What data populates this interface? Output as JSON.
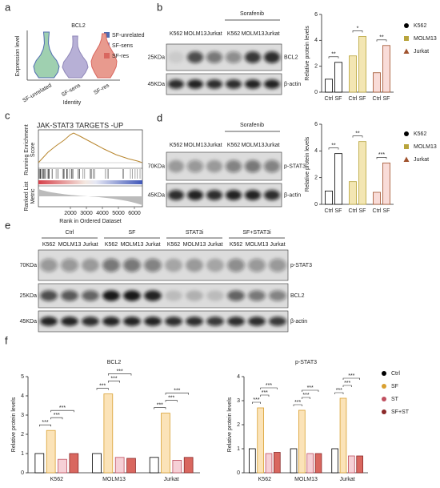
{
  "panel_labels": [
    "a",
    "b",
    "c",
    "d",
    "e",
    "f"
  ],
  "panel_a": {
    "title": "BCL2",
    "y_label": "Expression level",
    "x_label": "Identity",
    "categories": [
      "SF-unrelated",
      "SF-sens",
      "SF-res"
    ],
    "colors": [
      "#4f6bb0",
      "#8f86b8",
      "#d9675f"
    ]
  },
  "panel_b": {
    "treatment": "Sorafenib",
    "lanes": [
      "K562",
      "MOLM13",
      "Jurkat",
      "K562",
      "MOLM13",
      "Jurkat"
    ],
    "markers": [
      "25KDa",
      "45KDa"
    ],
    "proteins": [
      "BCL2",
      "β-actin"
    ]
  },
  "panel_c": {
    "title": "JAK-STAT3 TARGETS -UP",
    "score_label": [
      "Running Enrichment",
      "Score"
    ],
    "metric_label": [
      "Ranked List",
      "Metric"
    ],
    "x_label": "Rank in Ordered Dataset",
    "xlim": [
      0,
      6500
    ],
    "xticks": [
      2000,
      3000,
      4000,
      5000,
      6000
    ]
  },
  "panel_d": {
    "treatment": "Sorafenib",
    "lanes": [
      "K562",
      "MOLM13",
      "Jurkat",
      "K562",
      "MOLM13",
      "Jurkat"
    ],
    "markers": [
      "70KDa",
      "45KDa"
    ],
    "proteins": [
      "p-STAT3",
      "β-actin"
    ]
  },
  "panel_e": {
    "groups": [
      "Ctrl",
      "SF",
      "STAT3i",
      "SF+STAT3i"
    ],
    "lanes": [
      "K562",
      "MOLM13",
      "Jurkat"
    ],
    "markers": [
      "70KDa",
      "25KDa",
      "45KDa"
    ],
    "proteins": [
      "p-STAT3",
      "BCL2",
      "β-actin"
    ]
  },
  "chart_data": [
    {
      "type": "bar",
      "group_by": "series",
      "y_label": "Relative protein levels",
      "categories": [
        "Ctrl",
        "SF"
      ],
      "series": [
        {
          "name": "K562",
          "color": "#000000",
          "fill": "#ffffff",
          "marker": "circle",
          "values": [
            1.0,
            2.3
          ]
        },
        {
          "name": "MOLM13",
          "color": "#b8a43c",
          "fill": "#f3e6b3",
          "marker": "square",
          "values": [
            2.8,
            4.3
          ]
        },
        {
          "name": "Jurkat",
          "color": "#a0522d",
          "fill": "#f9dcd8",
          "marker": "triangle",
          "values": [
            1.5,
            3.6
          ]
        }
      ],
      "significance": [
        "**",
        "*",
        "**"
      ],
      "ylim": [
        0,
        6
      ],
      "yticks": [
        0,
        2,
        4,
        6
      ],
      "legend": true
    },
    {
      "type": "bar",
      "group_by": "series",
      "y_label": "Relative protein levels",
      "categories": [
        "Ctrl",
        "SF"
      ],
      "series": [
        {
          "name": "K562",
          "color": "#000000",
          "fill": "#ffffff",
          "marker": "circle",
          "values": [
            1.0,
            3.8
          ]
        },
        {
          "name": "MOLM13",
          "color": "#b8a43c",
          "fill": "#f3e6b3",
          "marker": "square",
          "values": [
            1.7,
            4.7
          ]
        },
        {
          "name": "Jurkat",
          "color": "#a0522d",
          "fill": "#f9dcd8",
          "marker": "triangle",
          "values": [
            0.9,
            3.1
          ]
        }
      ],
      "significance": [
        "**",
        "**",
        "***"
      ],
      "ylim": [
        0,
        6
      ],
      "yticks": [
        0,
        2,
        4,
        6
      ],
      "legend": true
    },
    {
      "type": "bar",
      "group_by": "categories",
      "title": "BCL2",
      "y_label": "Relative protein levels",
      "categories": [
        "K562",
        "MOLM13",
        "Jurkat"
      ],
      "series": [
        {
          "name": "Ctrl",
          "color": "#000000",
          "fill": "#ffffff",
          "marker": "circle",
          "values": [
            1.0,
            1.0,
            0.8
          ]
        },
        {
          "name": "SF",
          "color": "#d9a030",
          "fill": "#fbe3b8",
          "marker": "circle",
          "values": [
            2.2,
            4.1,
            3.1
          ]
        },
        {
          "name": "ST",
          "color": "#c05060",
          "fill": "#f6d0d6",
          "marker": "circle",
          "values": [
            0.7,
            0.8,
            0.65
          ]
        },
        {
          "name": "SF+ST",
          "color": "#8b2a2a",
          "fill": "#d9675f",
          "marker": "circle",
          "values": [
            1.0,
            0.75,
            0.8
          ]
        }
      ],
      "significance": [
        [
          "***",
          "***",
          "***"
        ],
        [
          "***",
          "***",
          "***"
        ],
        [
          "***",
          "***",
          "***"
        ]
      ],
      "ylim": [
        0,
        5
      ],
      "yticks": [
        0,
        1,
        2,
        3,
        4,
        5
      ],
      "legend": false
    },
    {
      "type": "bar",
      "group_by": "categories",
      "title": "p-STAT3",
      "y_label": "Relative protein levels",
      "categories": [
        "K562",
        "MOLM13",
        "Jurkat"
      ],
      "series": [
        {
          "name": "Ctrl",
          "color": "#000000",
          "fill": "#ffffff",
          "marker": "circle",
          "values": [
            1.0,
            1.0,
            1.0
          ]
        },
        {
          "name": "SF",
          "color": "#d9a030",
          "fill": "#fbe3b8",
          "marker": "circle",
          "values": [
            2.7,
            2.6,
            3.1
          ]
        },
        {
          "name": "ST",
          "color": "#c05060",
          "fill": "#f6d0d6",
          "marker": "circle",
          "values": [
            0.8,
            0.8,
            0.7
          ]
        },
        {
          "name": "SF+ST",
          "color": "#8b2a2a",
          "fill": "#d9675f",
          "marker": "circle",
          "values": [
            0.85,
            0.8,
            0.7
          ]
        }
      ],
      "significance": [
        [
          "***",
          "***",
          "***"
        ],
        [
          "***",
          "***",
          "***"
        ],
        [
          "***",
          "***",
          "***"
        ]
      ],
      "ylim": [
        0,
        4
      ],
      "yticks": [
        0,
        1,
        2,
        3,
        4
      ],
      "legend": true
    }
  ]
}
